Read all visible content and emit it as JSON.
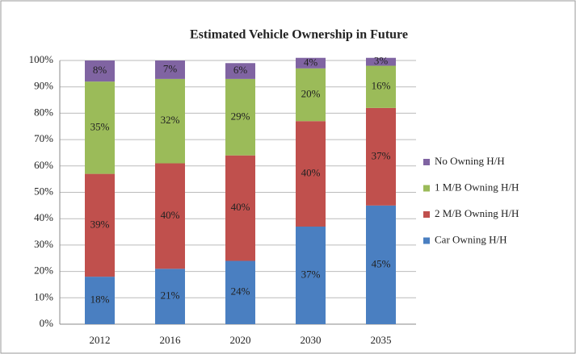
{
  "chart_data": {
    "type": "stacked_bar",
    "title": "Estimated Vehicle Ownership in Future",
    "categories": [
      "2012",
      "2016",
      "2020",
      "2030",
      "2035"
    ],
    "series": [
      {
        "name": "Car Owning H/H",
        "color": "#4a7fc1",
        "values": [
          18,
          21,
          24,
          37,
          45
        ],
        "value_labels": [
          "18%",
          "21%",
          "24%",
          "37%",
          "45%"
        ]
      },
      {
        "name": "2 M/B Owning H/H",
        "color": "#c0504d",
        "values": [
          39,
          40,
          40,
          40,
          37
        ],
        "value_labels": [
          "39%",
          "40%",
          "40%",
          "40%",
          "37%"
        ]
      },
      {
        "name": "1 M/B Owning H/H",
        "color": "#9bbb59",
        "values": [
          35,
          32,
          29,
          20,
          16
        ],
        "value_labels": [
          "35%",
          "32%",
          "29%",
          "20%",
          "16%"
        ]
      },
      {
        "name": "No Owning H/H",
        "color": "#8064a2",
        "values": [
          8,
          7,
          6,
          4,
          3
        ],
        "value_labels": [
          "8%",
          "7%",
          "6%",
          "4%",
          "3%"
        ]
      }
    ],
    "ylim": [
      0,
      100
    ],
    "yticks": [
      {
        "value": 0,
        "label": "0%"
      },
      {
        "value": 10,
        "label": "10%"
      },
      {
        "value": 20,
        "label": "20%"
      },
      {
        "value": 30,
        "label": "30%"
      },
      {
        "value": 40,
        "label": "40%"
      },
      {
        "value": 50,
        "label": "50%"
      },
      {
        "value": 60,
        "label": "60%"
      },
      {
        "value": 70,
        "label": "70%"
      },
      {
        "value": 80,
        "label": "80%"
      },
      {
        "value": 90,
        "label": "90%"
      },
      {
        "value": 100,
        "label": "100%"
      }
    ],
    "grid": true,
    "legend": "right"
  }
}
